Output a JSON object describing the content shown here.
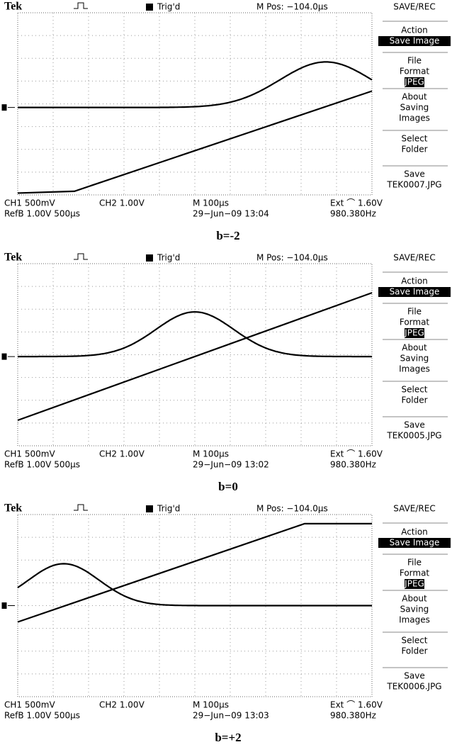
{
  "panels": [
    {
      "header": {
        "brand": "Tek",
        "status": "Trig'd",
        "position": "M Pos: −104.0µs"
      },
      "menu": {
        "title": "SAVE/REC",
        "action": [
          "Action",
          "Save Image"
        ],
        "format": [
          "File",
          "Format",
          "JPEG"
        ],
        "about": [
          "About",
          "Saving",
          "Images"
        ],
        "folder": [
          "Select",
          "Folder"
        ],
        "save": [
          "Save",
          "TEK0007.JPG"
        ]
      },
      "footer": {
        "ch1": "CH1  500mV",
        "ch2": "CH2  1.00V",
        "timebase": "M 100µs",
        "trigger": "Ext ⌒ 1.60V",
        "ref": "RefB 1.00V 500µs",
        "date": "29−Jun−09 13:04",
        "frequency": "980.380Hz"
      },
      "caption": "b=-2"
    },
    {
      "header": {
        "brand": "Tek",
        "status": "Trig'd",
        "position": "M Pos: −104.0µs"
      },
      "menu": {
        "title": "SAVE/REC",
        "action": [
          "Action",
          "Save Image"
        ],
        "format": [
          "File",
          "Format",
          "JPEG"
        ],
        "about": [
          "About",
          "Saving",
          "Images"
        ],
        "folder": [
          "Select",
          "Folder"
        ],
        "save": [
          "Save",
          "TEK0005.JPG"
        ]
      },
      "footer": {
        "ch1": "CH1  500mV",
        "ch2": "CH2  1.00V",
        "timebase": "M 100µs",
        "trigger": "Ext ⌒ 1.60V",
        "ref": "RefB 1.00V 500µs",
        "date": "29−Jun−09 13:02",
        "frequency": "980.380Hz"
      },
      "caption": "b=0"
    },
    {
      "header": {
        "brand": "Tek",
        "status": "Trig'd",
        "position": "M Pos: −104.0µs"
      },
      "menu": {
        "title": "SAVE/REC",
        "action": [
          "Action",
          "Save Image"
        ],
        "format": [
          "File",
          "Format",
          "JPEG"
        ],
        "about": [
          "About",
          "Saving",
          "Images"
        ],
        "folder": [
          "Select",
          "Folder"
        ],
        "save": [
          "Save",
          "TEK0006.JPG"
        ]
      },
      "footer": {
        "ch1": "CH1  500mV",
        "ch2": "CH2  1.00V",
        "timebase": "M 100µs",
        "trigger": "Ext ⌒ 1.60V",
        "ref": "RefB 1.00V 500µs",
        "date": "29−Jun−09 13:03",
        "frequency": "980.380Hz"
      },
      "caption": "b=+2"
    }
  ]
}
